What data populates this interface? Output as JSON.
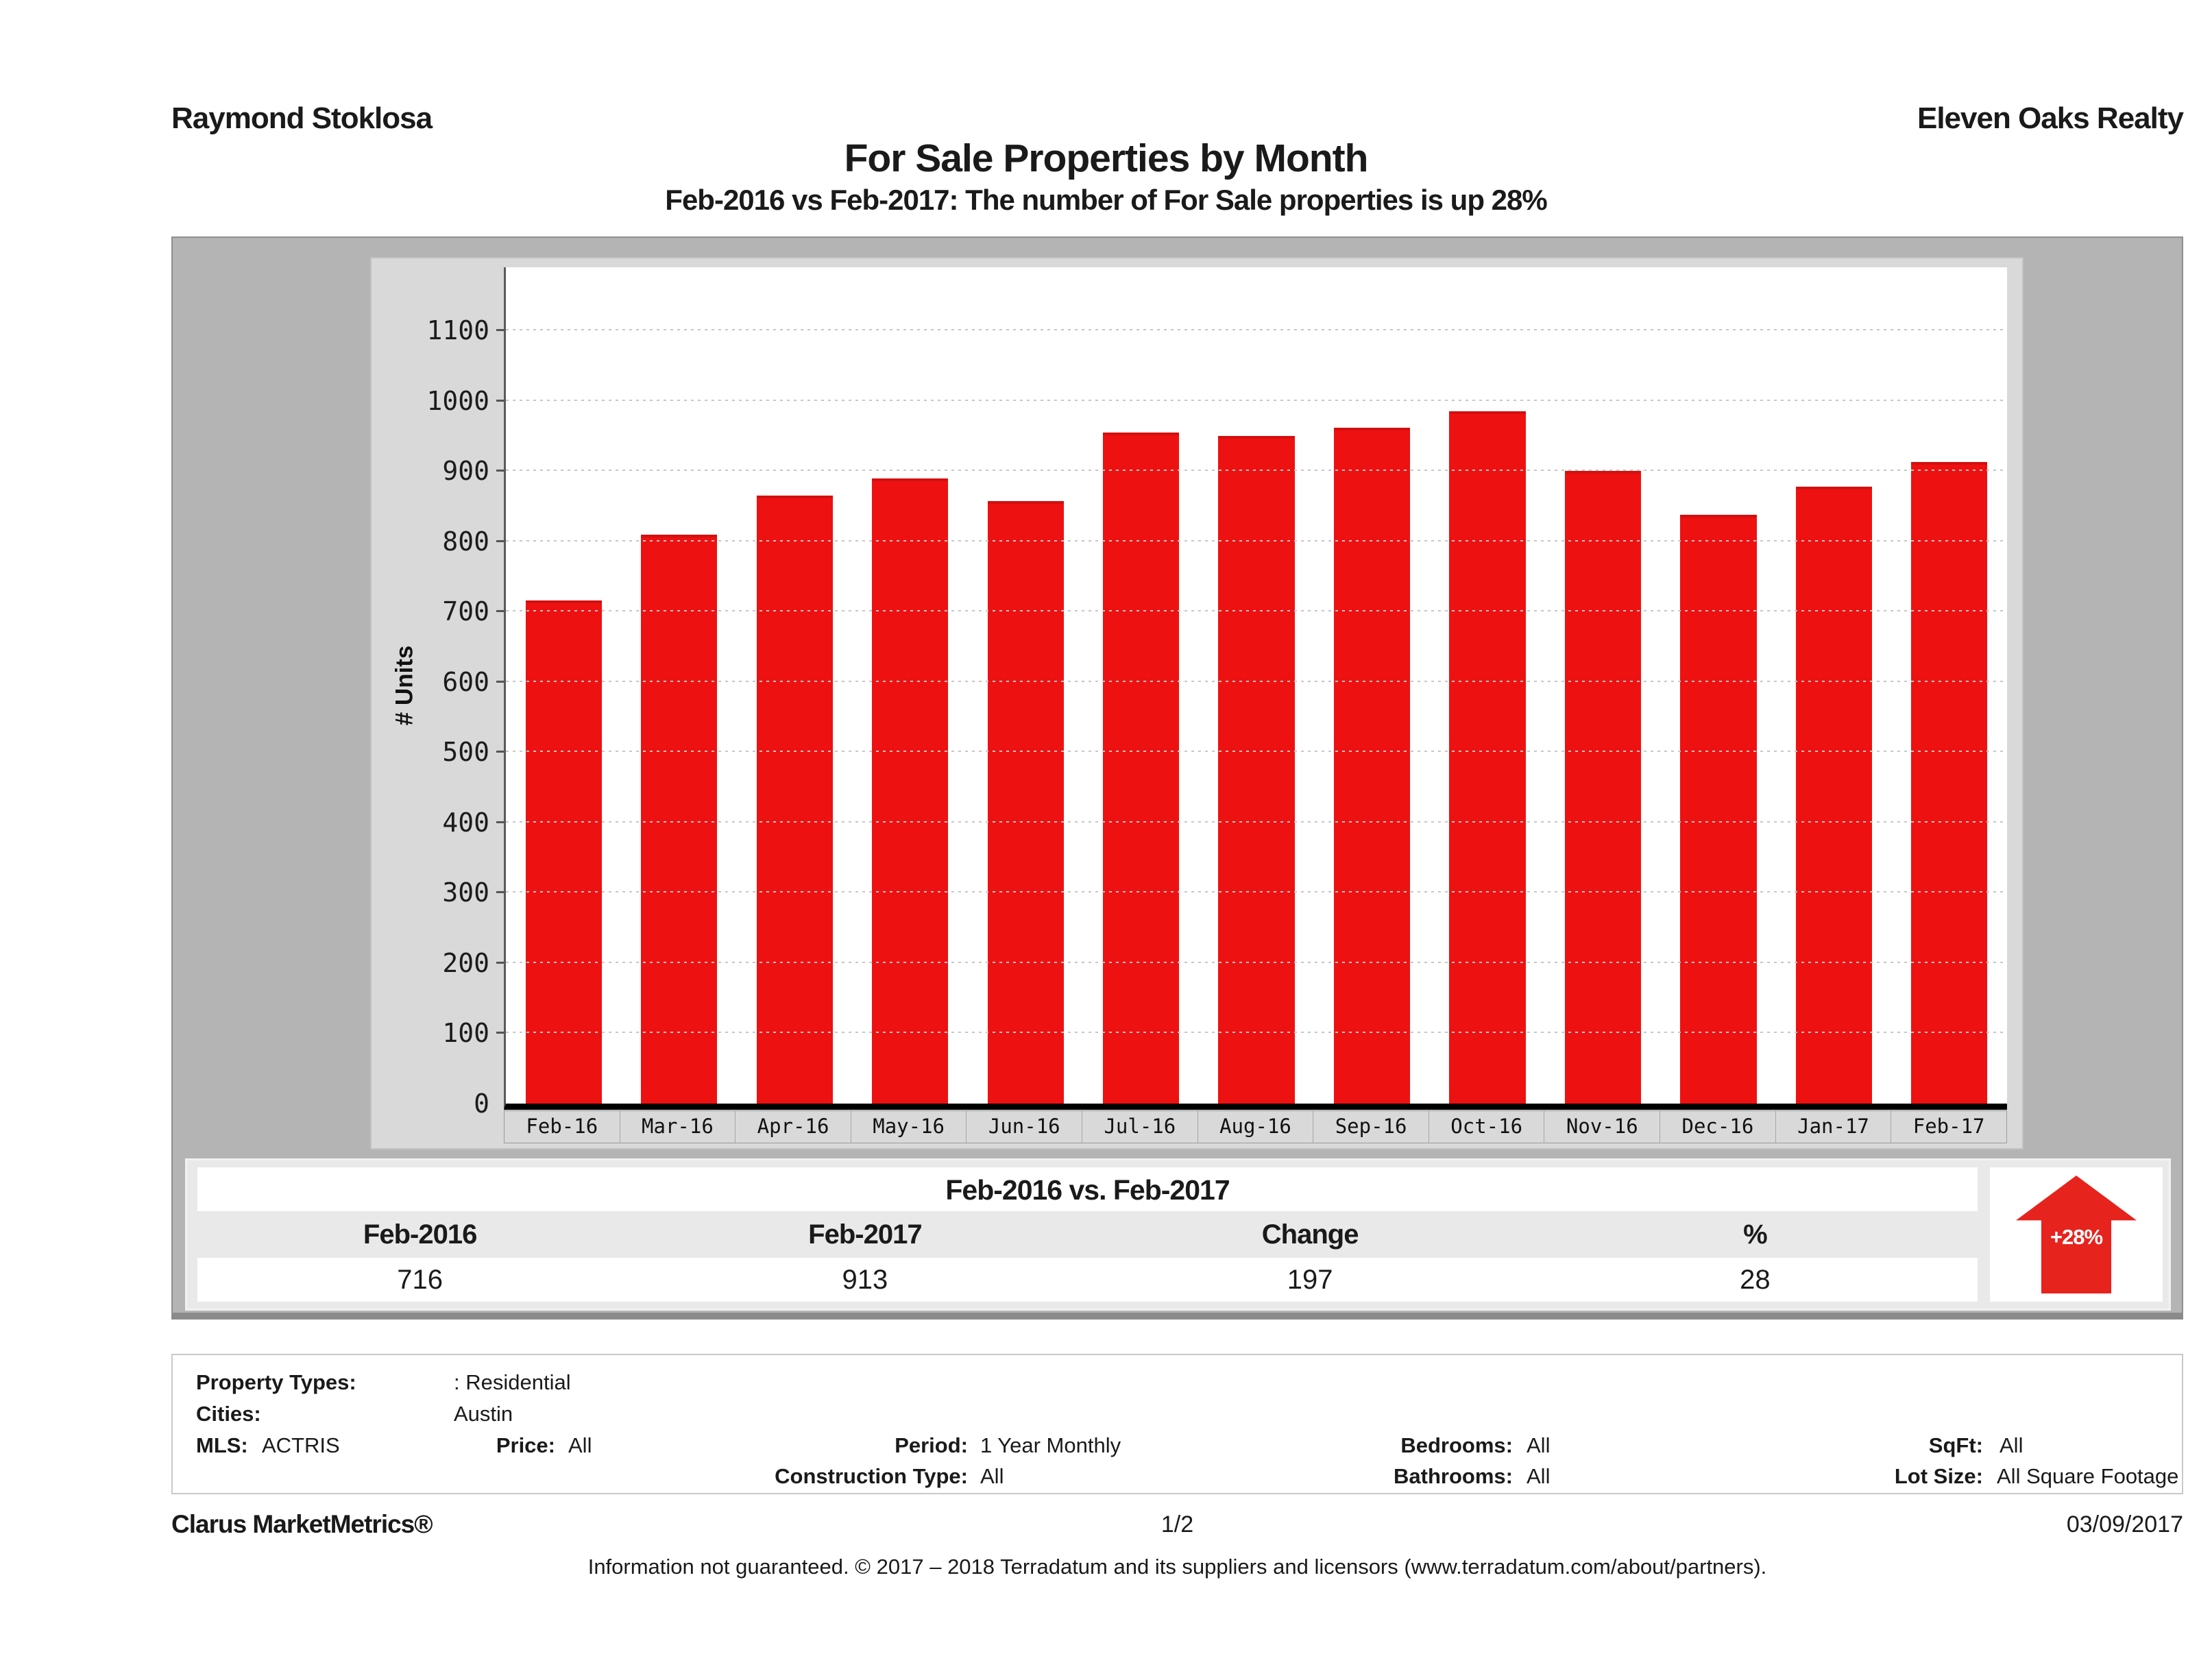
{
  "header": {
    "agent": "Raymond Stoklosa",
    "company": "Eleven Oaks Realty",
    "title": "For Sale Properties by Month",
    "subtitle": "Feb-2016 vs Feb-2017: The number of For Sale  properties is up 28%"
  },
  "chart_data": {
    "type": "bar",
    "title": "For Sale Properties by Month",
    "xlabel": "",
    "ylabel": "# Units",
    "categories": [
      "Feb-16",
      "Mar-16",
      "Apr-16",
      "May-16",
      "Jun-16",
      "Jul-16",
      "Aug-16",
      "Sep-16",
      "Oct-16",
      "Nov-16",
      "Dec-16",
      "Jan-17",
      "Feb-17"
    ],
    "values": [
      716,
      810,
      865,
      890,
      857,
      955,
      950,
      962,
      985,
      900,
      838,
      878,
      913
    ],
    "ylim": [
      0,
      1190
    ],
    "ytick_step": 100,
    "ytick_max": 1100,
    "grid": "dotted-horizontal",
    "legend": "none",
    "bar_color": "#ee1111"
  },
  "comparison_table": {
    "title": "Feb-2016 vs. Feb-2017",
    "columns": [
      "Feb-2016",
      "Feb-2017",
      "Change",
      "%"
    ],
    "values": [
      "716",
      "913",
      "197",
      "28"
    ],
    "arrow_label": "+28%",
    "arrow_color": "#e6231d"
  },
  "details": {
    "property_types_label": "Property Types:",
    "property_types_value": ": Residential",
    "cities_label": "Cities:",
    "cities_value": "Austin",
    "mls_label": "MLS:",
    "mls_value": "ACTRIS",
    "price_label": "Price:",
    "price_value": "All",
    "period_label": "Period:",
    "period_value": "1 Year Monthly",
    "construction_label": "Construction Type:",
    "construction_value": "All",
    "bedrooms_label": "Bedrooms:",
    "bedrooms_value": "All",
    "bathrooms_label": "Bathrooms:",
    "bathrooms_value": "All",
    "sqft_label": "SqFt:",
    "sqft_value": "All",
    "lot_label": "Lot Size:",
    "lot_value": "All Square Footage"
  },
  "footer": {
    "brand": "Clarus MarketMetrics®",
    "page": "1/2",
    "date": "03/09/2017",
    "disclaimer": "Information not guaranteed. © 2017 – 2018 Terradatum and its suppliers and licensors (www.terradatum.com/about/partners)."
  }
}
